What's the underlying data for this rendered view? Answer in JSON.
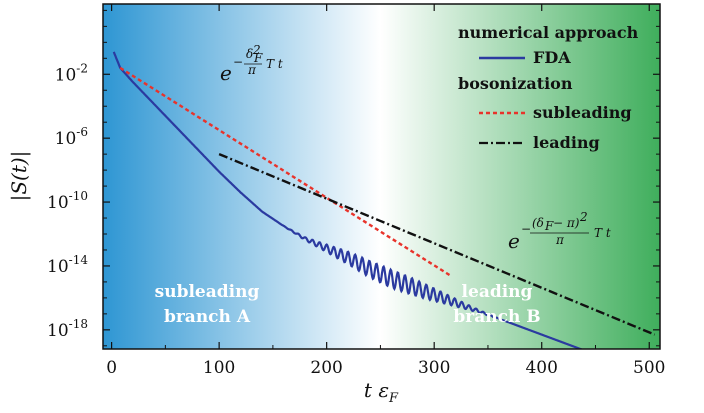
{
  "chart_data": {
    "type": "line",
    "xlabel": "t ε_F",
    "ylabel": "|S(t)|",
    "xlim": [
      -8,
      510
    ],
    "y_scale": "log10",
    "ylim_exponent": [
      -19.2,
      2.4
    ],
    "x_ticks": [
      0,
      100,
      200,
      300,
      400,
      500
    ],
    "x_tick_labels": [
      "0",
      "100",
      "200",
      "300",
      "400",
      "500"
    ],
    "y_ticks": [
      -2,
      -6,
      -10,
      -14,
      -18
    ],
    "y_tick_labels": [
      {
        "base": "10",
        "exp": "-2"
      },
      {
        "base": "10",
        "exp": "-6"
      },
      {
        "base": "10",
        "exp": "-10"
      },
      {
        "base": "10",
        "exp": "-14"
      },
      {
        "base": "10",
        "exp": "-18"
      }
    ],
    "background": {
      "left_color": "#2e96d3",
      "center_color": "#ffffff",
      "right_color": "#3fae5c",
      "center_x": 250
    },
    "legend": {
      "placement": "top-right",
      "groups": [
        {
          "header": "numerical approach",
          "entries": [
            {
              "label": "FDA",
              "series": "FDA"
            }
          ]
        },
        {
          "header": "bosonization",
          "entries": [
            {
              "label": "subleading",
              "series": "subleading"
            },
            {
              "label": "leading",
              "series": "leading"
            }
          ]
        }
      ]
    },
    "series": [
      {
        "name": "FDA",
        "color": "#2b3aa0",
        "style": "solid",
        "x": [
          2,
          8,
          20,
          40,
          60,
          80,
          100,
          120,
          140,
          160,
          180,
          200,
          220,
          240,
          260,
          280,
          300,
          320,
          340,
          360,
          380,
          400,
          420,
          440,
          460,
          480,
          500
        ],
        "log10_y": [
          -0.6,
          -1.6,
          -2.5,
          -3.9,
          -5.3,
          -6.7,
          -8.1,
          -9.4,
          -10.6,
          -11.5,
          -12.3,
          -12.9,
          -13.5,
          -14.2,
          -14.8,
          -15.3,
          -15.8,
          -16.3,
          -16.8,
          -17.3,
          -17.8,
          -18.3,
          -18.8,
          -19.3,
          -19.8,
          -20.3,
          -20.8
        ],
        "oscillation_region": [
          150,
          370
        ]
      },
      {
        "name": "subleading",
        "color": "#e8332b",
        "style": "dashed",
        "x": [
          8,
          315
        ],
        "log10_y": [
          -1.6,
          -14.6
        ]
      },
      {
        "name": "leading",
        "color": "#111111",
        "style": "dashdot",
        "x": [
          100,
          505
        ],
        "log10_y": [
          -7.0,
          -18.3
        ]
      }
    ],
    "annotations": [
      {
        "id": "formula_subleading",
        "base": "e",
        "exponent": "−(δ_F²/π) T t"
      },
      {
        "id": "formula_leading",
        "base": "e",
        "exponent": "−((δ_F − π)²/π) T t"
      },
      {
        "id": "branch_a",
        "lines": [
          "subleading",
          "branch A"
        ]
      },
      {
        "id": "branch_b",
        "lines": [
          "leading",
          "branch B"
        ]
      }
    ]
  }
}
